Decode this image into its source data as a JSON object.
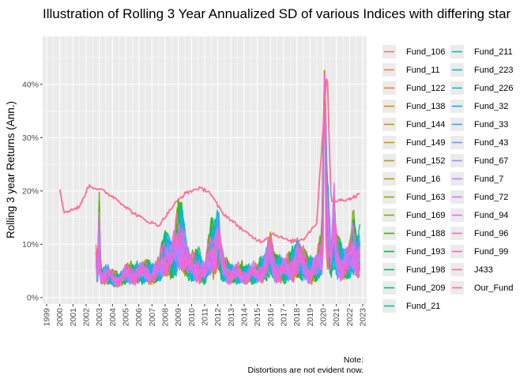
{
  "chart_data": {
    "type": "line",
    "title": "Illustration of Rolling 3 Year Annualized SD of various Indices with differing star",
    "xlabel": "",
    "ylabel": "Rolling 3 year Returns (Ann.)",
    "x_ticks": [
      "1999",
      "2000",
      "2001",
      "2002",
      "2003",
      "2004",
      "2005",
      "2006",
      "2007",
      "2008",
      "2009",
      "2010",
      "2011",
      "2012",
      "2013",
      "2014",
      "2015",
      "2016",
      "2017",
      "2018",
      "2019",
      "2020",
      "2021",
      "2022",
      "2023"
    ],
    "y_ticks": [
      "0%",
      "10%",
      "20%",
      "30%",
      "40%"
    ],
    "xlim": [
      1998.7,
      2023.3
    ],
    "ylim": [
      -0.012,
      0.49
    ],
    "grid": true,
    "legend_position": "right",
    "caption_lines": [
      "Note:",
      "Distortions are not evident now."
    ],
    "series": [
      {
        "name": "Fund_106",
        "color": "#F8766D"
      },
      {
        "name": "Fund_11",
        "color": "#F17D51"
      },
      {
        "name": "Fund_122",
        "color": "#E88526"
      },
      {
        "name": "Fund_138",
        "color": "#DE8C00"
      },
      {
        "name": "Fund_144",
        "color": "#D39200"
      },
      {
        "name": "Fund_149",
        "color": "#C59900"
      },
      {
        "name": "Fund_152",
        "color": "#B79F00"
      },
      {
        "name": "Fund_16",
        "color": "#A3A500"
      },
      {
        "name": "Fund_163",
        "color": "#8EAB00"
      },
      {
        "name": "Fund_169",
        "color": "#6FB000"
      },
      {
        "name": "Fund_188",
        "color": "#39B600"
      },
      {
        "name": "Fund_193",
        "color": "#00BA38"
      },
      {
        "name": "Fund_198",
        "color": "#00BD5C"
      },
      {
        "name": "Fund_209",
        "color": "#00BF7D"
      },
      {
        "name": "Fund_21",
        "color": "#00C19C"
      },
      {
        "name": "Fund_211",
        "color": "#00C1B3"
      },
      {
        "name": "Fund_223",
        "color": "#00BFC4"
      },
      {
        "name": "Fund_226",
        "color": "#00BCD8"
      },
      {
        "name": "Fund_32",
        "color": "#00B4EF"
      },
      {
        "name": "Fund_33",
        "color": "#35A2FF"
      },
      {
        "name": "Fund_43",
        "color": "#619CFF"
      },
      {
        "name": "Fund_67",
        "color": "#9590FF"
      },
      {
        "name": "Fund_7",
        "color": "#B983FF"
      },
      {
        "name": "Fund_72",
        "color": "#D575FE"
      },
      {
        "name": "Fund_94",
        "color": "#E76BF3"
      },
      {
        "name": "Fund_96",
        "color": "#F564E3"
      },
      {
        "name": "Fund_99",
        "color": "#FF62BC"
      },
      {
        "name": "J433",
        "color": "#FF6C91"
      },
      {
        "name": "Our_Fund",
        "color": "#FF6C91"
      }
    ],
    "approx_series_values": {
      "note_fund_envelope": "funds start late 2002; typical range 0.03-0.12; spikes: 2003 0.19, 2008-2009 0.18, 2011-2012 0.16, 2016 0.13, 2018 0.12, 2020 0.46, 2021 0.21, 2022 0.16",
      "J433": [
        [
          2000.0,
          0.205
        ],
        [
          2000.3,
          0.16
        ],
        [
          2001.5,
          0.17
        ],
        [
          2002.2,
          0.21
        ],
        [
          2003.3,
          0.2
        ],
        [
          2004.3,
          0.185
        ],
        [
          2005.5,
          0.16
        ],
        [
          2006.5,
          0.145
        ],
        [
          2007.5,
          0.135
        ],
        [
          2008.7,
          0.175
        ],
        [
          2009.5,
          0.195
        ],
        [
          2010.5,
          0.205
        ],
        [
          2011.3,
          0.2
        ],
        [
          2012.3,
          0.16
        ],
        [
          2013.5,
          0.135
        ],
        [
          2014.5,
          0.115
        ],
        [
          2015.3,
          0.105
        ],
        [
          2016.2,
          0.12
        ],
        [
          2017.5,
          0.105
        ],
        [
          2018.5,
          0.11
        ],
        [
          2019.5,
          0.14
        ],
        [
          2020.3,
          0.43
        ],
        [
          2020.6,
          0.18
        ],
        [
          2022.0,
          0.185
        ],
        [
          2022.8,
          0.195
        ]
      ]
    }
  }
}
